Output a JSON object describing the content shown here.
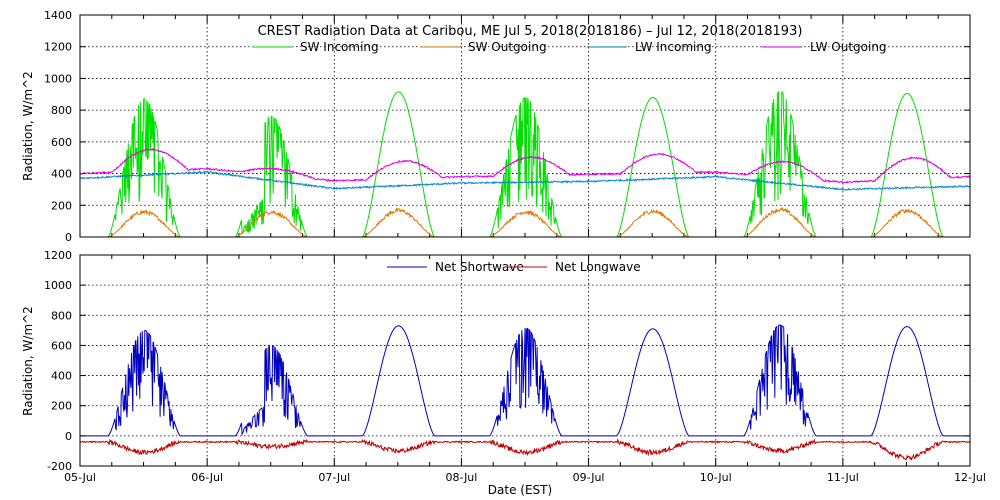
{
  "chart_data": [
    {
      "type": "line",
      "title": "CREST Radiation Data at Caribou, ME   Jul  5, 2018(2018186) – Jul 12, 2018(2018193)",
      "ylabel": "Radiation, W/m^2",
      "xlabel": "",
      "ylim": [
        0,
        1400
      ],
      "yticks": [
        "0",
        "200",
        "400",
        "600",
        "800",
        "1000",
        "1200",
        "1400"
      ],
      "xlim": [
        "2018-07-05",
        "2018-07-12"
      ],
      "grid": true,
      "legend_position": "top-center",
      "series": [
        {
          "name": "SW Incoming",
          "color": "#00e000",
          "daily_peaks": [
            870,
            760,
            915,
            880,
            880,
            920,
            905
          ],
          "daily_cloudy": [
            true,
            true,
            false,
            true,
            false,
            true,
            false
          ]
        },
        {
          "name": "SW Outgoing",
          "color": "#e07800",
          "daily_peaks": [
            170,
            170,
            180,
            170,
            175,
            185,
            180
          ]
        },
        {
          "name": "LW Incoming",
          "color": "#0088c8",
          "x": [
            "2018-07-05",
            "2018-07-06",
            "2018-07-07",
            "2018-07-08",
            "2018-07-09",
            "2018-07-10",
            "2018-07-11",
            "2018-07-12"
          ],
          "values": [
            370,
            410,
            305,
            340,
            350,
            380,
            300,
            320
          ]
        },
        {
          "name": "LW Outgoing",
          "color": "#e000e0",
          "x": [
            "2018-07-05",
            "2018-07-06",
            "2018-07-07",
            "2018-07-08",
            "2018-07-09",
            "2018-07-10",
            "2018-07-11",
            "2018-07-12"
          ],
          "values": [
            400,
            430,
            355,
            380,
            395,
            410,
            345,
            380
          ],
          "daily_peaks": [
            535,
            470,
            465,
            495,
            515,
            510,
            480
          ]
        }
      ]
    },
    {
      "type": "line",
      "title": "",
      "ylabel": "Radiation, W/m^2",
      "xlabel": "Date (EST)",
      "ylim": [
        -200,
        1200
      ],
      "yticks": [
        "-200",
        "0",
        "200",
        "400",
        "600",
        "800",
        "1000",
        "1200"
      ],
      "xlim": [
        "2018-07-05",
        "2018-07-12"
      ],
      "xticks": [
        "05-Jul",
        "06-Jul",
        "07-Jul",
        "08-Jul",
        "09-Jul",
        "10-Jul",
        "11-Jul",
        "12-Jul"
      ],
      "grid": true,
      "legend_position": "top-center",
      "series": [
        {
          "name": "Net Shortwave",
          "color": "#0000c0",
          "daily_peaks": [
            700,
            600,
            730,
            715,
            710,
            735,
            725
          ],
          "daily_cloudy": [
            true,
            true,
            false,
            true,
            false,
            true,
            false
          ]
        },
        {
          "name": "Net Longwave",
          "color": "#c00000",
          "night_value": -40,
          "daily_minima": [
            -110,
            -70,
            -100,
            -110,
            -110,
            -100,
            -145
          ]
        }
      ]
    }
  ]
}
